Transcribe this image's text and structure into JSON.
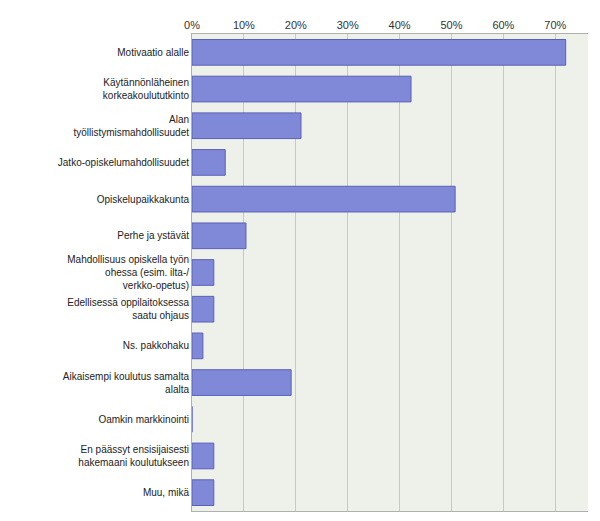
{
  "chart_data": {
    "type": "bar",
    "orientation": "horizontal",
    "categories": [
      "Motivaatio alalle",
      "Käytännönläheinen korkeakoulututkinto",
      "Alan työllistymismahdollisuudet",
      "Jatko-opiskelumahdollisuudet",
      "Opiskelupaikkakunta",
      "Perhe ja ystävät",
      "Mahdollisuus opiskella työn ohessa (esim. ilta-/ verkko-opetus)",
      "Edellisessä oppilaitoksessa saatu ohjaus",
      "Ns. pakkohaku",
      "Aikaisempi koulutus samalta alalta",
      "Oamkin markkinointi",
      "En päässyt ensisijaisesti hakemaani koulutukseen",
      "Muu, mikä"
    ],
    "values": [
      72,
      42.2,
      21,
      6.4,
      50.7,
      10.4,
      4.2,
      4.2,
      2.1,
      19.1,
      0,
      4.2,
      4.2
    ],
    "color": "#8088d8",
    "xlim": [
      0,
      76.3
    ],
    "xticks": [
      {
        "value": 0,
        "label": "0%"
      },
      {
        "value": 10,
        "label": "10%"
      },
      {
        "value": 20,
        "label": "20%"
      },
      {
        "value": 30,
        "label": "30%"
      },
      {
        "value": 40,
        "label": "40%"
      },
      {
        "value": 50,
        "label": "50%"
      },
      {
        "value": 60,
        "label": "60%"
      },
      {
        "value": 70,
        "label": "70%"
      }
    ],
    "grid": true
  }
}
